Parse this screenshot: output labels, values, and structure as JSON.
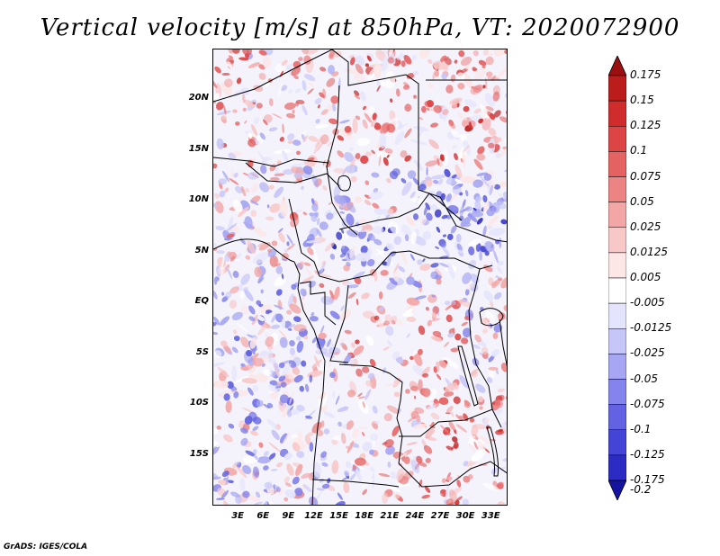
{
  "title": "Vertical velocity [m/s] at 850hPa, VT: 2020072900",
  "credit": "GrADS: IGES/COLA",
  "map": {
    "lon_range": [
      0,
      35
    ],
    "lat_range": [
      -20,
      25
    ],
    "lat_ticks": [
      {
        "value": 20,
        "label": "20N"
      },
      {
        "value": 15,
        "label": "15N"
      },
      {
        "value": 10,
        "label": "10N"
      },
      {
        "value": 5,
        "label": "5N"
      },
      {
        "value": 0,
        "label": "EQ"
      },
      {
        "value": -5,
        "label": "5S"
      },
      {
        "value": -10,
        "label": "10S"
      },
      {
        "value": -15,
        "label": "15S"
      }
    ],
    "lon_ticks": [
      {
        "value": 3,
        "label": "3E"
      },
      {
        "value": 6,
        "label": "6E"
      },
      {
        "value": 9,
        "label": "9E"
      },
      {
        "value": 12,
        "label": "12E"
      },
      {
        "value": 15,
        "label": "15E"
      },
      {
        "value": 18,
        "label": "18E"
      },
      {
        "value": 21,
        "label": "21E"
      },
      {
        "value": 24,
        "label": "24E"
      },
      {
        "value": 27,
        "label": "27E"
      },
      {
        "value": 30,
        "label": "30E"
      },
      {
        "value": 33,
        "label": "33E"
      }
    ]
  },
  "colorbar": {
    "levels": [
      {
        "label": "0.175",
        "color": "#a01010"
      },
      {
        "label": "0.15",
        "color": "#bb1c1c"
      },
      {
        "label": "0.125",
        "color": "#d02c2c"
      },
      {
        "label": "0.1",
        "color": "#dd4444"
      },
      {
        "label": "0.075",
        "color": "#e56262"
      },
      {
        "label": "0.05",
        "color": "#ec8484"
      },
      {
        "label": "0.025",
        "color": "#f3a6a6"
      },
      {
        "label": "0.0125",
        "color": "#f8c8c8"
      },
      {
        "label": "0.005",
        "color": "#fce6e6"
      },
      {
        "label": "-0.005",
        "color": "#ffffff"
      },
      {
        "label": "-0.0125",
        "color": "#e4e4fc"
      },
      {
        "label": "-0.025",
        "color": "#c6c6f8"
      },
      {
        "label": "-0.05",
        "color": "#a6a6f2"
      },
      {
        "label": "-0.075",
        "color": "#8484ec"
      },
      {
        "label": "-0.1",
        "color": "#6262e2"
      },
      {
        "label": "-0.125",
        "color": "#4444d6"
      },
      {
        "label": "-0.175",
        "color": "#2c2cc4"
      },
      {
        "label": "-0.2",
        "color": "#1a1aa8"
      }
    ],
    "top_arrow_color": "#9a1010",
    "bottom_arrow_color": "#1414a0"
  }
}
